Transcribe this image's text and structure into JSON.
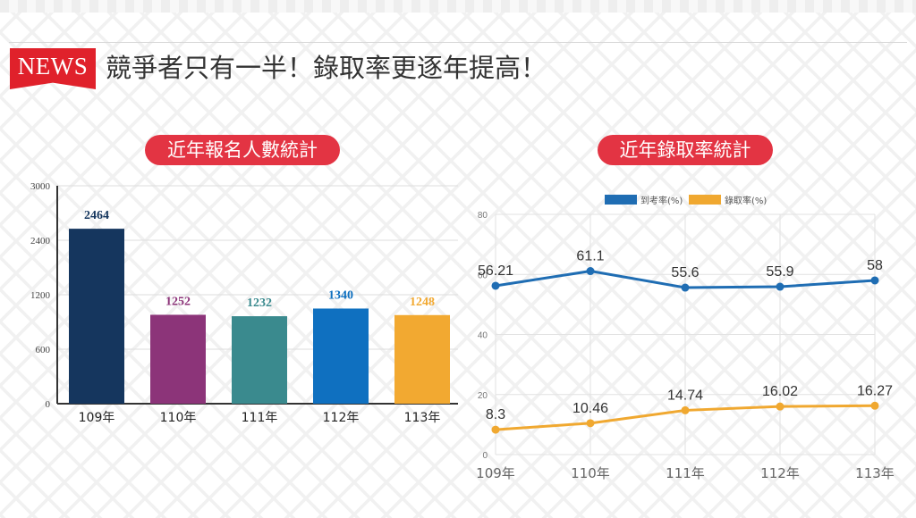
{
  "header": {
    "badge": "NEWS",
    "headline": "競爭者只有一半！錄取率更逐年提高！"
  },
  "colors": {
    "accent": "#e33443",
    "bar_colors": [
      "#15365e",
      "#8c3479",
      "#3a8a8e",
      "#0f70c0",
      "#f2a931"
    ],
    "line_colors": [
      "#1f6db3",
      "#f0a830"
    ]
  },
  "chart_data": [
    {
      "type": "bar",
      "title": "近年報名人數統計",
      "categories": [
        "109年",
        "110年",
        "111年",
        "112年",
        "113年"
      ],
      "values": [
        2464,
        1252,
        1232,
        1340,
        1248
      ],
      "data_labels": [
        "2464",
        "1252",
        "1232",
        "1340",
        "1248"
      ],
      "y_ticks": [
        "3000",
        "2400",
        "1200",
        "600",
        "0"
      ],
      "grid": true
    },
    {
      "type": "line",
      "title": "近年錄取率統計",
      "categories": [
        "109年",
        "110年",
        "111年",
        "112年",
        "113年"
      ],
      "ylim": [
        0,
        80
      ],
      "y_ticks": [
        "80",
        "60",
        "40",
        "20",
        "0"
      ],
      "grid": true,
      "legend_position": "top",
      "series": [
        {
          "name": "到考率(%)",
          "values": [
            56.21,
            61.1,
            55.6,
            55.9,
            58
          ],
          "labels": [
            "56.21",
            "61.1",
            "55.6",
            "55.9",
            "58"
          ]
        },
        {
          "name": "錄取率(%)",
          "values": [
            8.3,
            10.46,
            14.74,
            16.02,
            16.27
          ],
          "labels": [
            "8.3",
            "10.46",
            "14.74",
            "16.02",
            "16.27"
          ]
        }
      ]
    }
  ]
}
